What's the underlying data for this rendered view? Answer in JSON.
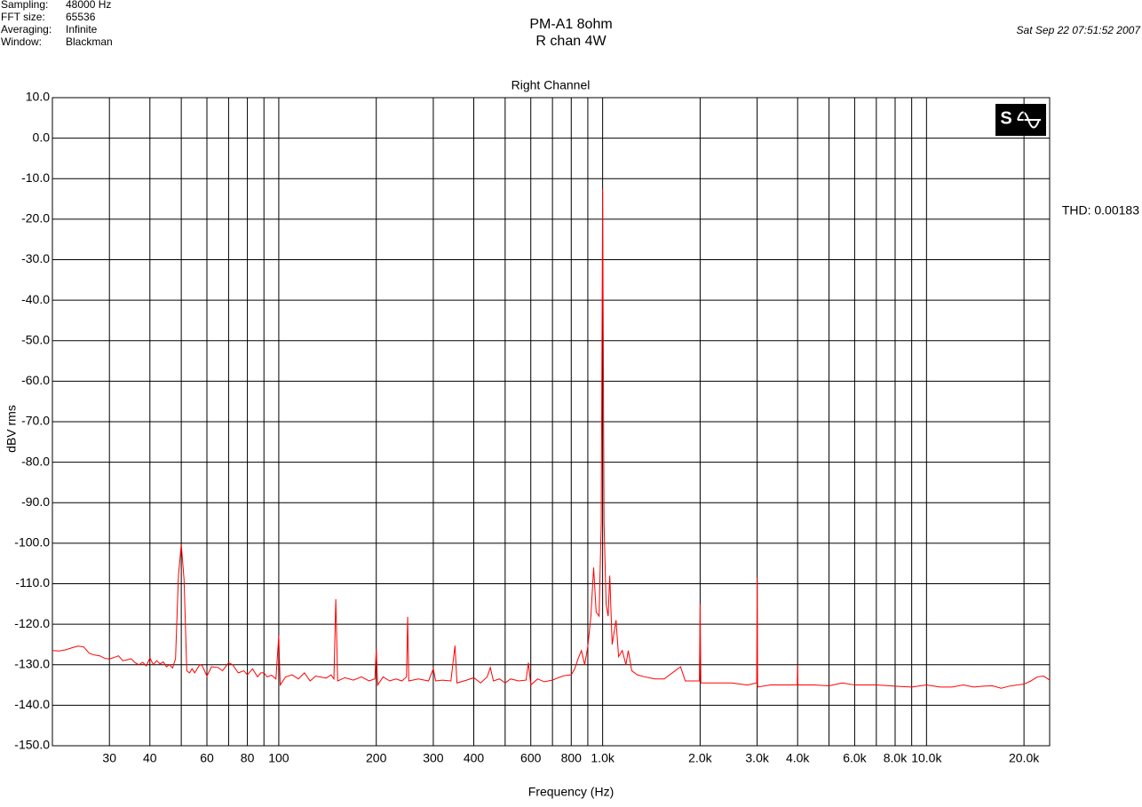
{
  "header": {
    "settings": [
      {
        "label": "Sampling:",
        "value": "48000 Hz"
      },
      {
        "label": "FFT size:",
        "value": "65536"
      },
      {
        "label": "Averaging:",
        "value": "Infinite"
      },
      {
        "label": "Window:",
        "value": "Blackman"
      }
    ],
    "title_line1": "PM-A1  8ohm",
    "title_line2": "R chan  4W",
    "timestamp": "Sat Sep 22 07:51:52 2007"
  },
  "chart_data": {
    "type": "line",
    "title": "Right Channel",
    "annotation": "THD: 0.00183",
    "x_label": "Frequency (Hz)",
    "y_label": "dBV rms",
    "xscale": "log",
    "grid": true,
    "xlim": [
      20,
      24000
    ],
    "ylim": [
      -150,
      10
    ],
    "xticks": [
      30,
      40,
      60,
      80,
      100,
      200,
      300,
      400,
      600,
      800,
      {
        "value": 1000,
        "label": "1.0k"
      },
      {
        "value": 2000,
        "label": "2.0k"
      },
      {
        "value": 3000,
        "label": "3.0k"
      },
      {
        "value": 4000,
        "label": "4.0k"
      },
      {
        "value": 6000,
        "label": "6.0k"
      },
      {
        "value": 8000,
        "label": "8.0k"
      },
      {
        "value": 10000,
        "label": "10.0k"
      },
      {
        "value": 20000,
        "label": "20.0k"
      }
    ],
    "xminor_ticks": [
      50,
      70,
      90,
      500,
      700,
      900,
      5000,
      7000,
      9000
    ],
    "yticks": [
      {
        "value": 10,
        "label": "10.0"
      },
      {
        "value": 0,
        "label": "0.0"
      },
      {
        "value": -10,
        "label": "-10.0"
      },
      {
        "value": -20,
        "label": "-20.0"
      },
      {
        "value": -30,
        "label": "-30.0"
      },
      {
        "value": -40,
        "label": "-40.0"
      },
      {
        "value": -50,
        "label": "-50.0"
      },
      {
        "value": -60,
        "label": "-60.0"
      },
      {
        "value": -70,
        "label": "-70.0"
      },
      {
        "value": -80,
        "label": "-80.0"
      },
      {
        "value": -90,
        "label": "-90.0"
      },
      {
        "value": -100,
        "label": "-100.0"
      },
      {
        "value": -110,
        "label": "-110.0"
      },
      {
        "value": -120,
        "label": "-120.0"
      },
      {
        "value": -130,
        "label": "-130.0"
      },
      {
        "value": -140,
        "label": "-140.0"
      },
      {
        "value": -150,
        "label": "-150.0"
      }
    ],
    "x": [
      20,
      21,
      22,
      23,
      24,
      25,
      26,
      27,
      28,
      29,
      30,
      31,
      32,
      33,
      34,
      35,
      36,
      37,
      38,
      39,
      40,
      41,
      42,
      43,
      44,
      45,
      46,
      47,
      48,
      49,
      50,
      51,
      52,
      53,
      54,
      55,
      57,
      58,
      60,
      62,
      65,
      67,
      70,
      72,
      75,
      78,
      80,
      83,
      86,
      88,
      90,
      92,
      95,
      98,
      100,
      101,
      105,
      110,
      115,
      120,
      125,
      130,
      140,
      145,
      148,
      150,
      152,
      160,
      170,
      180,
      190,
      198,
      200,
      202,
      210,
      220,
      230,
      240,
      248,
      250,
      252,
      270,
      290,
      300,
      305,
      320,
      340,
      350,
      355,
      380,
      400,
      420,
      440,
      450,
      460,
      480,
      500,
      520,
      550,
      580,
      590,
      600,
      630,
      660,
      700,
      730,
      760,
      800,
      820,
      840,
      860,
      880,
      900,
      920,
      938,
      955,
      975,
      990,
      1000,
      1010,
      1025,
      1040,
      1052,
      1070,
      1100,
      1120,
      1150,
      1180,
      1200,
      1230,
      1280,
      1350,
      1450,
      1550,
      1740,
      1800,
      1990,
      2000,
      2010,
      2200,
      2500,
      2800,
      2990,
      3000,
      3010,
      3300,
      3600,
      3990,
      4000,
      4010,
      4500,
      5000,
      5500,
      6000,
      7000,
      8000,
      9000,
      10000,
      11000,
      12000,
      13000,
      14000,
      15000,
      16000,
      17000,
      18000,
      19000,
      20000,
      21000,
      22000,
      23000,
      24000
    ],
    "series": [
      {
        "color": "#ff0000",
        "values": [
          -126.5,
          -126.6,
          -126.3,
          -125.8,
          -125.4,
          -125.6,
          -127.2,
          -127.6,
          -127.8,
          -128.4,
          -128.6,
          -128.2,
          -127.8,
          -129.0,
          -128.8,
          -128.5,
          -129.5,
          -130.0,
          -129.4,
          -130.3,
          -128.3,
          -130.0,
          -129.0,
          -129.8,
          -129.3,
          -130.5,
          -130.0,
          -130.8,
          -128.5,
          -108,
          -100.3,
          -109,
          -131.5,
          -132,
          -131,
          -132,
          -130,
          -130.2,
          -132.8,
          -130.5,
          -130.7,
          -131.5,
          -129.5,
          -130,
          -132,
          -131.5,
          -132.5,
          -131,
          -133,
          -132,
          -132,
          -133,
          -132.6,
          -133.5,
          -122.8,
          -135,
          -133,
          -132.5,
          -133.5,
          -132,
          -134,
          -132.8,
          -133.3,
          -132.5,
          -133.5,
          -113.8,
          -134,
          -133.2,
          -133.8,
          -133,
          -134,
          -133.5,
          -126.2,
          -135,
          -133,
          -134,
          -133.5,
          -134,
          -133,
          -118.2,
          -134,
          -133.5,
          -134,
          -131,
          -134,
          -133.8,
          -134,
          -125.3,
          -134.5,
          -133.8,
          -133.2,
          -134.5,
          -133,
          -130.7,
          -134,
          -133.5,
          -134.5,
          -133.5,
          -134,
          -133.8,
          -129.5,
          -135,
          -133.5,
          -134.2,
          -133.8,
          -133.2,
          -132.7,
          -132.5,
          -131,
          -128.5,
          -126.5,
          -130,
          -125.5,
          -118,
          -106,
          -117,
          -118,
          -95,
          -12.5,
          -95,
          -115,
          -118,
          -108,
          -125,
          -119,
          -128,
          -126.5,
          -130,
          -126.5,
          -131.5,
          -132.5,
          -133,
          -133.5,
          -133.5,
          -130.5,
          -134,
          -134,
          -115,
          -134.5,
          -134.5,
          -134.5,
          -135,
          -134.5,
          -108.5,
          -135.5,
          -135,
          -135,
          -135,
          -130,
          -135,
          -135,
          -135.2,
          -134.5,
          -135,
          -135,
          -135.3,
          -135.5,
          -135,
          -135.5,
          -135.5,
          -135,
          -135.5,
          -135.3,
          -135.2,
          -135.8,
          -135.3,
          -135,
          -134.8,
          -134,
          -133,
          -132.8,
          -133.8
        ]
      }
    ]
  }
}
